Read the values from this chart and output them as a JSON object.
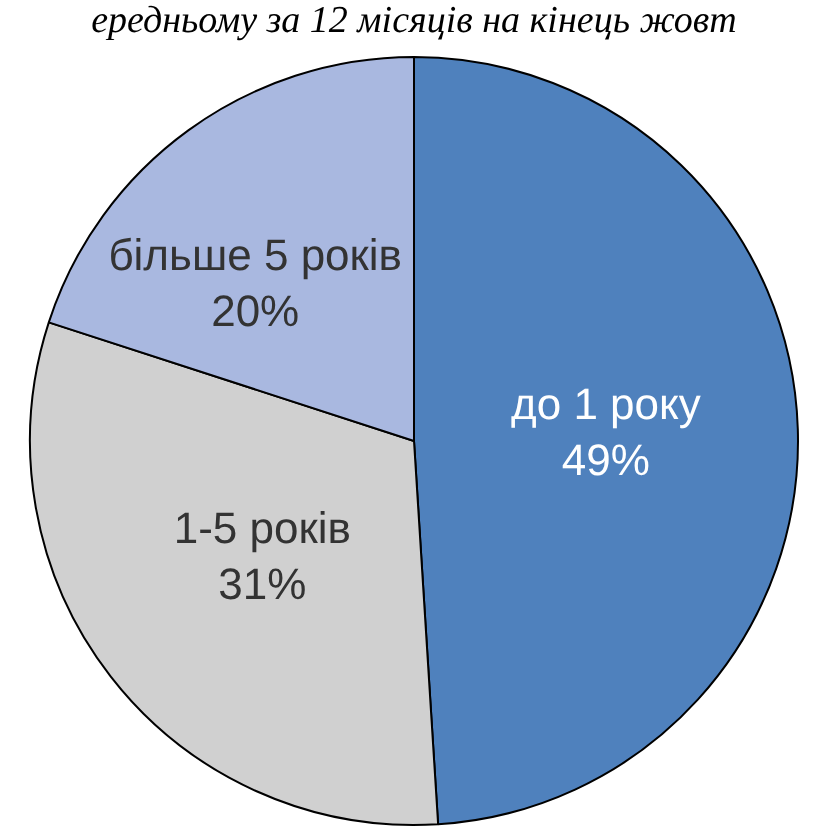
{
  "chart_data": {
    "type": "pie",
    "title": "ередньому за 12 місяців на кінець жовт",
    "categories": [
      "до 1 року",
      "1-5 років",
      "більше 5 років"
    ],
    "values": [
      49,
      31,
      20
    ],
    "value_labels": [
      "49%",
      "31%",
      "20%"
    ],
    "colors": [
      "#4f81bd",
      "#d0d0d0",
      "#a9b8e0"
    ],
    "legend": false
  }
}
